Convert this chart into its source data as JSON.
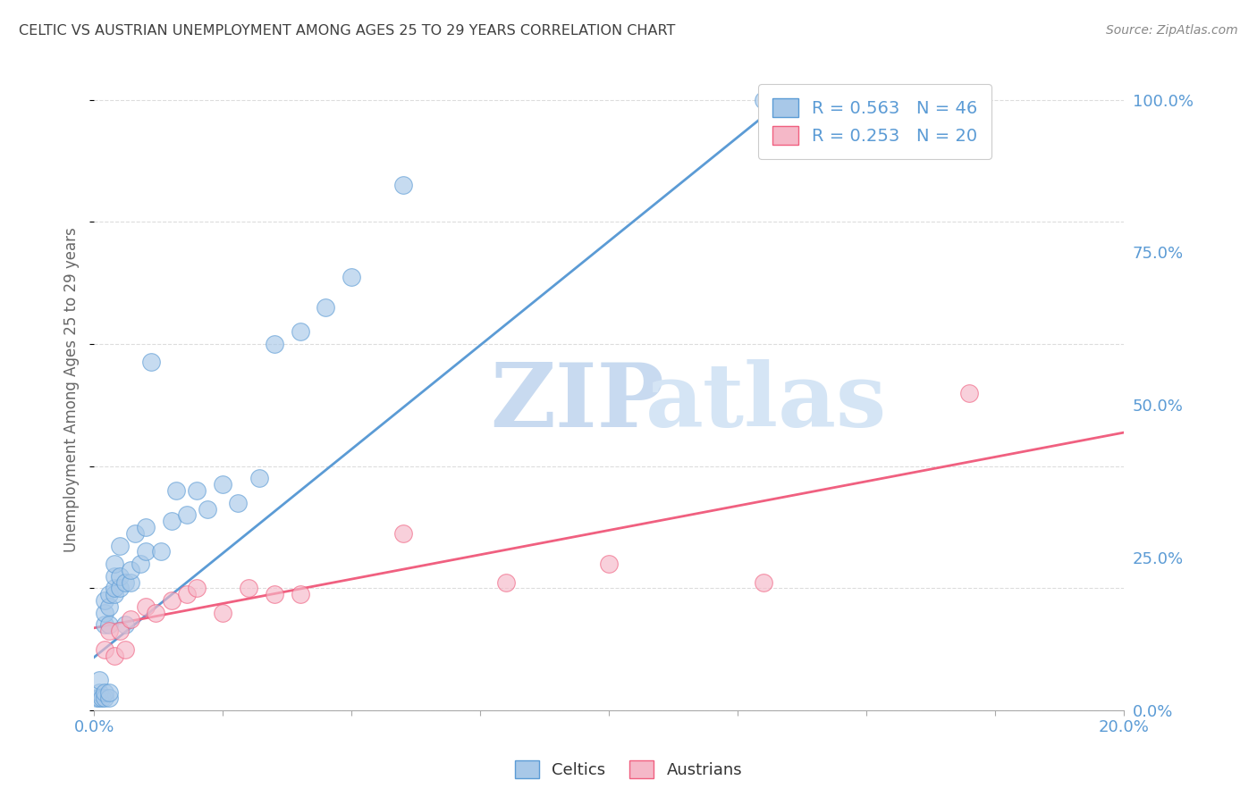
{
  "title": "CELTIC VS AUSTRIAN UNEMPLOYMENT AMONG AGES 25 TO 29 YEARS CORRELATION CHART",
  "source": "Source: ZipAtlas.com",
  "ylabel": "Unemployment Among Ages 25 to 29 years",
  "yticks_right": [
    0.0,
    0.25,
    0.5,
    0.75,
    1.0
  ],
  "ytick_labels_right": [
    "0.0%",
    "25.0%",
    "50.0%",
    "75.0%",
    "100.0%"
  ],
  "legend_celtics": "R = 0.563   N = 46",
  "legend_austrians": "R = 0.253   N = 20",
  "celtics_color": "#a8c8e8",
  "austrians_color": "#f5b8c8",
  "celtics_edge_color": "#5b9bd5",
  "austrians_edge_color": "#f06080",
  "celtics_line_color": "#5b9bd5",
  "austrians_line_color": "#f06080",
  "title_color": "#404040",
  "axis_label_color": "#5b9bd5",
  "source_color": "#888888",
  "grid_color": "#dddddd",
  "watermark_zip": "ZIP",
  "watermark_atlas": "atlas",
  "watermark_zip_color": "#c8daf0",
  "watermark_atlas_color": "#d5e5f5",
  "celtics_x": [
    0.0005,
    0.001,
    0.001,
    0.001,
    0.0015,
    0.002,
    0.002,
    0.002,
    0.002,
    0.002,
    0.003,
    0.003,
    0.003,
    0.003,
    0.003,
    0.004,
    0.004,
    0.004,
    0.004,
    0.005,
    0.005,
    0.005,
    0.006,
    0.006,
    0.007,
    0.007,
    0.008,
    0.009,
    0.01,
    0.01,
    0.011,
    0.013,
    0.015,
    0.016,
    0.018,
    0.02,
    0.022,
    0.025,
    0.028,
    0.032,
    0.035,
    0.04,
    0.045,
    0.05,
    0.06,
    0.13
  ],
  "celtics_y": [
    0.02,
    0.02,
    0.03,
    0.05,
    0.02,
    0.02,
    0.03,
    0.14,
    0.16,
    0.18,
    0.02,
    0.03,
    0.14,
    0.17,
    0.19,
    0.19,
    0.2,
    0.22,
    0.24,
    0.2,
    0.22,
    0.27,
    0.14,
    0.21,
    0.21,
    0.23,
    0.29,
    0.24,
    0.26,
    0.3,
    0.57,
    0.26,
    0.31,
    0.36,
    0.32,
    0.36,
    0.33,
    0.37,
    0.34,
    0.38,
    0.6,
    0.62,
    0.66,
    0.71,
    0.86,
    1.0
  ],
  "austrians_x": [
    0.002,
    0.003,
    0.004,
    0.005,
    0.006,
    0.007,
    0.01,
    0.012,
    0.015,
    0.018,
    0.02,
    0.025,
    0.03,
    0.035,
    0.04,
    0.06,
    0.08,
    0.1,
    0.13,
    0.17
  ],
  "austrians_y": [
    0.1,
    0.13,
    0.09,
    0.13,
    0.1,
    0.15,
    0.17,
    0.16,
    0.18,
    0.19,
    0.2,
    0.16,
    0.2,
    0.19,
    0.19,
    0.29,
    0.21,
    0.24,
    0.21,
    0.52
  ],
  "celtic_line_x0": 0.0,
  "celtic_line_y0": 0.087,
  "celtic_line_x1": 0.134,
  "celtic_line_y1": 1.0,
  "austrian_line_x0": 0.0,
  "austrian_line_y0": 0.135,
  "austrian_line_x1": 0.2,
  "austrian_line_y1": 0.455,
  "xmin": 0.0,
  "xmax": 0.2,
  "ymin": 0.0,
  "ymax": 1.05,
  "xtick_positions": [
    0.0,
    0.025,
    0.05,
    0.075,
    0.1,
    0.125,
    0.15,
    0.175,
    0.2
  ]
}
